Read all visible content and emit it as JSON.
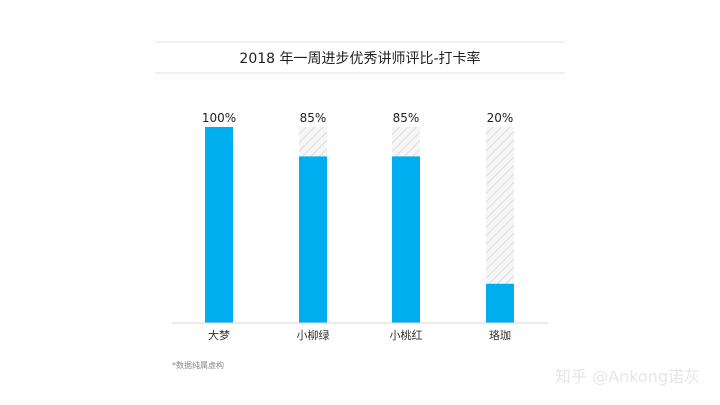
{
  "chart_data": {
    "type": "bar",
    "title": "2018 年一周进步优秀讲师评比-打卡率",
    "categories": [
      "大梦",
      "小柳绿",
      "小桃红",
      "珞珈"
    ],
    "values": [
      100,
      85,
      85,
      20
    ],
    "value_labels": [
      "100%",
      "85%",
      "85%",
      "20%"
    ],
    "ylim": [
      0,
      100
    ],
    "xlabel": "",
    "ylabel": "",
    "grid": false,
    "legend": "none",
    "colors": {
      "bar": "#00adef",
      "remainder_hatch": "#d4d4d4",
      "remainder_bg": "#f6f6f6",
      "axis": "#d8d8d8"
    }
  },
  "footnote": "*数据纯属虚构",
  "watermark": "知乎 @Ankong诺灰"
}
